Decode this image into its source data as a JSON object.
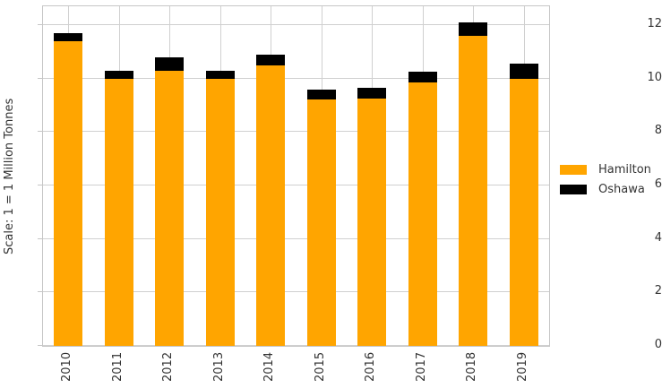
{
  "chart_data": {
    "type": "bar",
    "stacked": true,
    "title": "",
    "xlabel": "",
    "ylabel": "Scale: 1 = 1 Million Tonnes",
    "categories": [
      "2010",
      "2011",
      "2012",
      "2013",
      "2014",
      "2015",
      "2016",
      "2017",
      "2018",
      "2019"
    ],
    "series": [
      {
        "name": "Hamilton",
        "color": "#FFA500",
        "values": [
          11.4,
          10.0,
          10.3,
          10.0,
          10.5,
          9.2,
          9.25,
          9.85,
          11.6,
          10.0
        ]
      },
      {
        "name": "Oshawa",
        "color": "#000000",
        "values": [
          0.3,
          0.3,
          0.5,
          0.3,
          0.4,
          0.4,
          0.4,
          0.4,
          0.5,
          0.55
        ]
      }
    ],
    "ylim": [
      0,
      12.7
    ],
    "yticks": [
      0,
      2,
      4,
      6,
      8,
      10,
      12
    ],
    "grid": true,
    "legend_position": "center-right",
    "colors": {
      "grid": "#d0d0d0",
      "spine": "#c6c6c6",
      "text": "#333333",
      "background": "#ffffff"
    }
  }
}
